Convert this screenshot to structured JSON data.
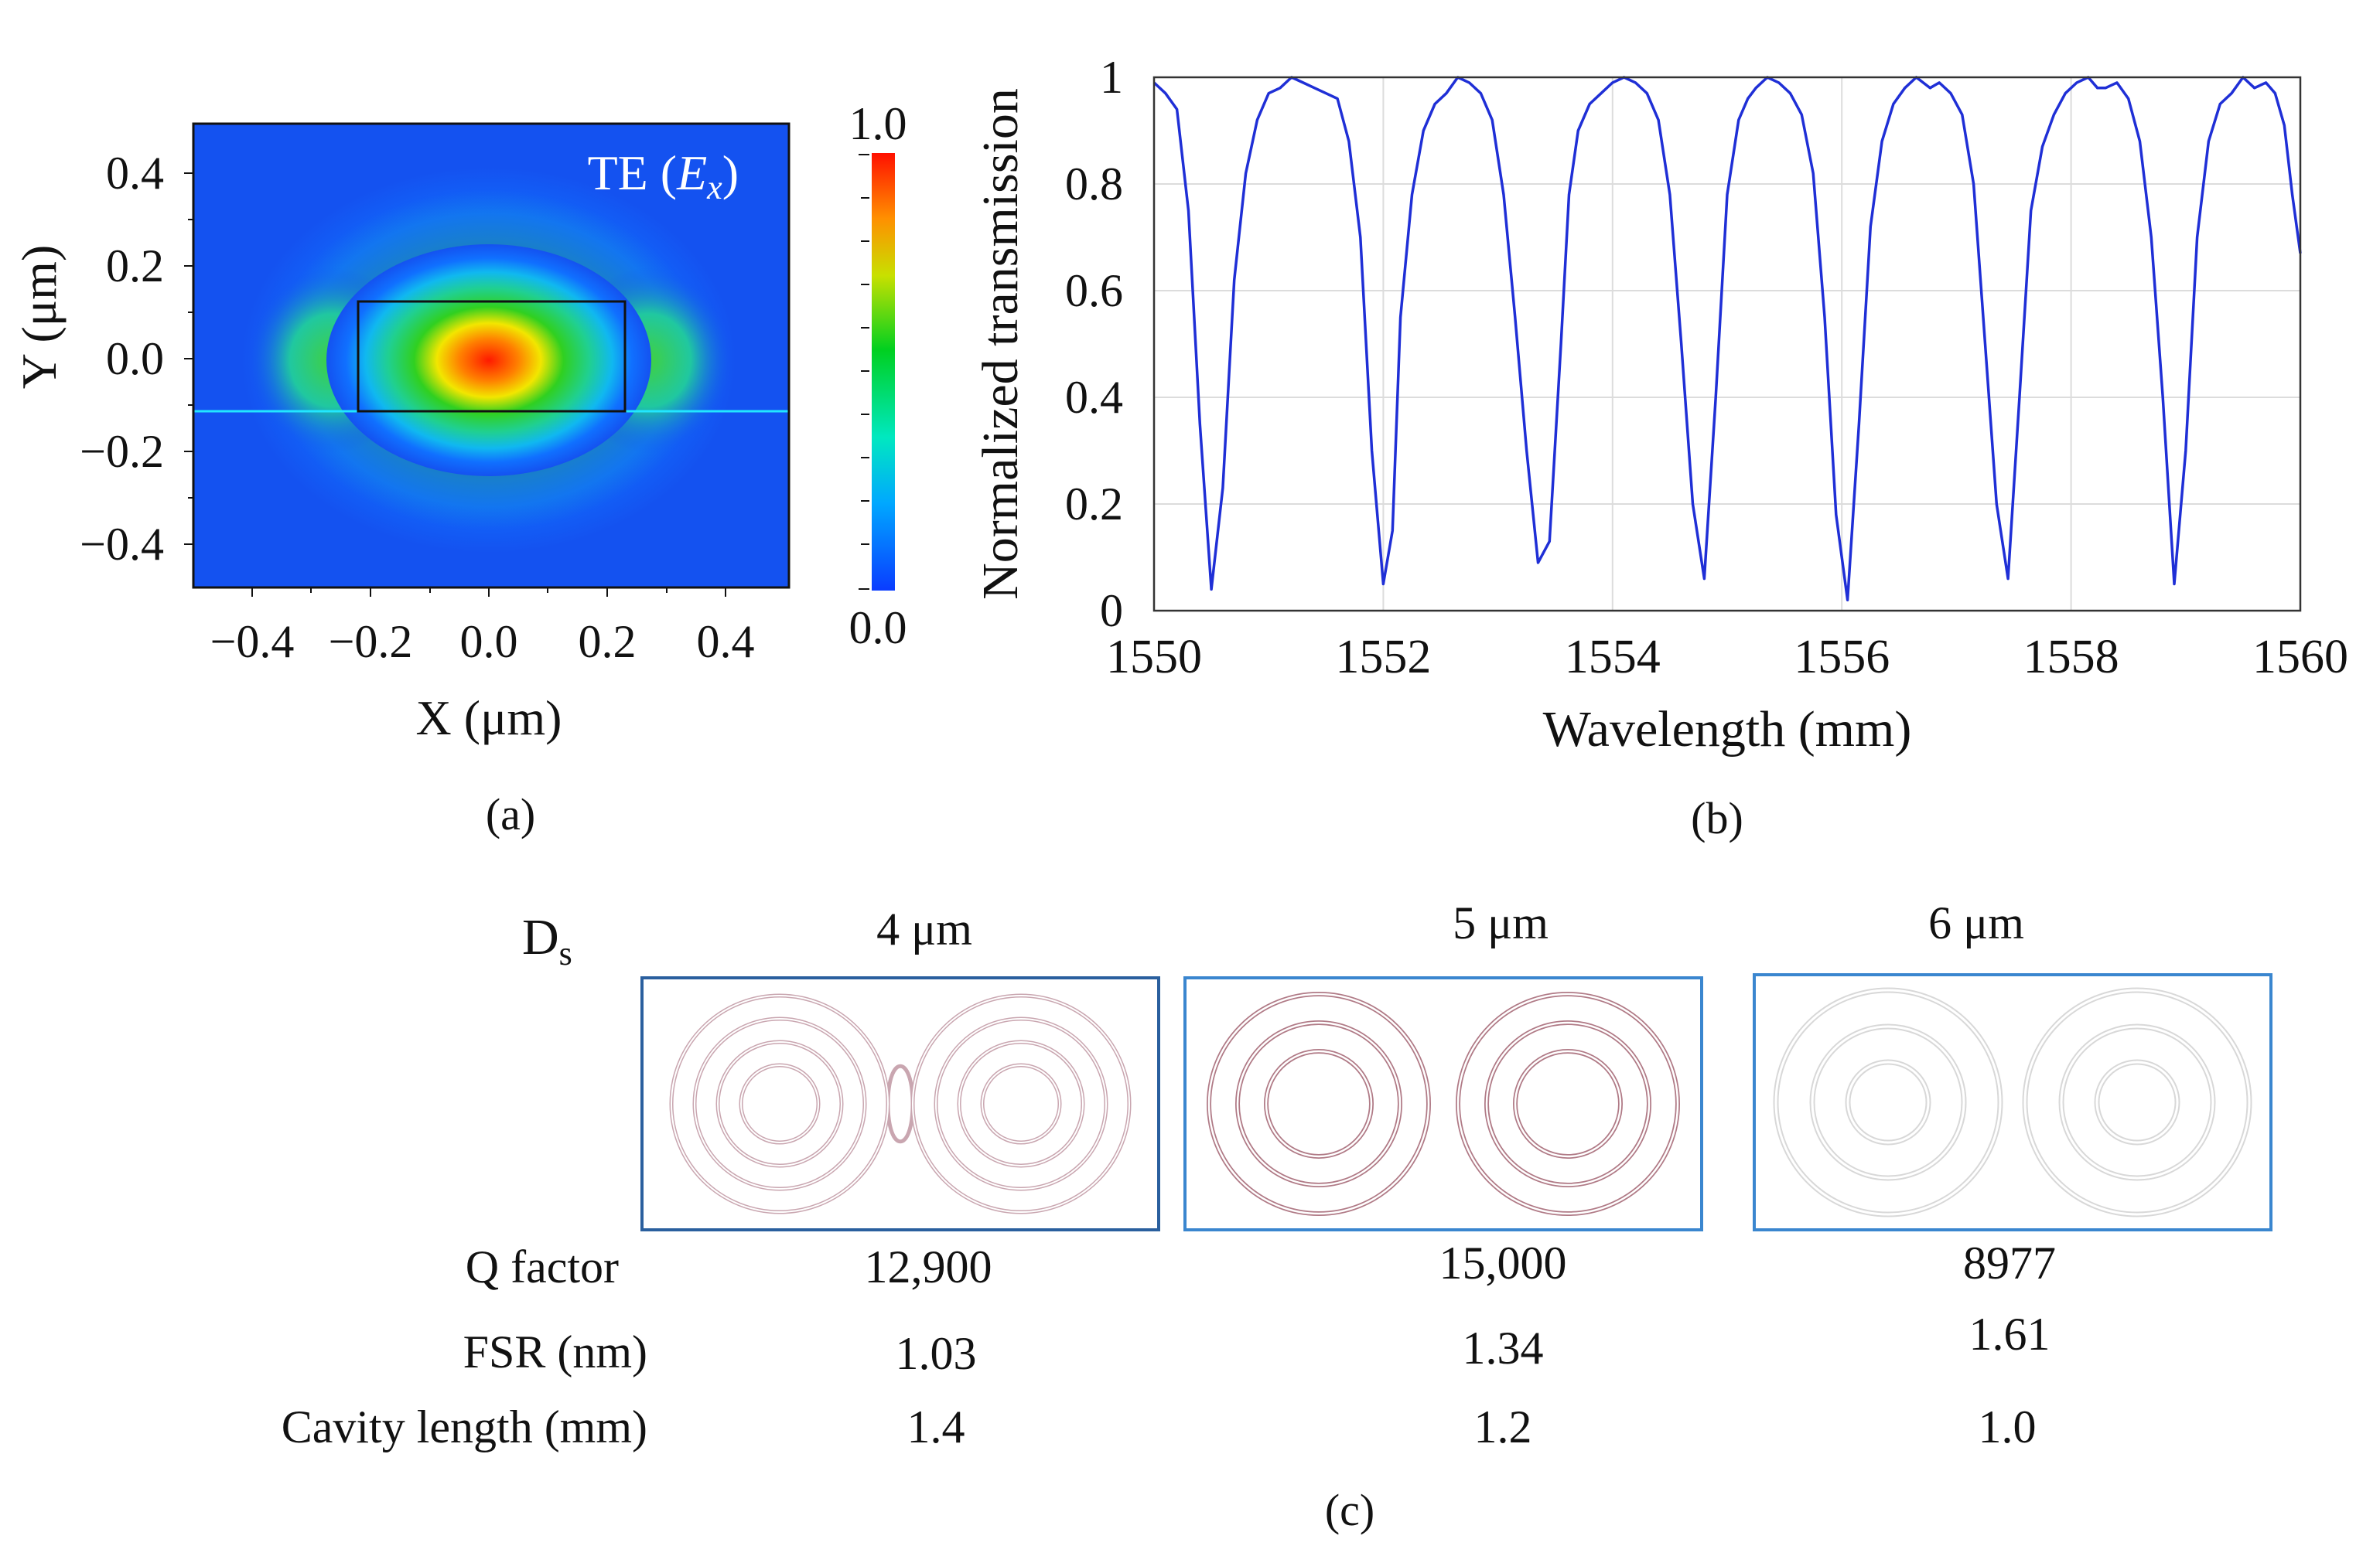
{
  "panel_a": {
    "caption": "(a)",
    "mode_label_prefix": "TE (",
    "mode_label_var": "E",
    "mode_label_sub": "x",
    "mode_label_suffix": ")",
    "xlabel": "X (μm)",
    "ylabel": "Y (μm)",
    "x_ticks": [
      "−0.4",
      "−0.2",
      "0.0",
      "0.2",
      "0.4"
    ],
    "y_ticks": [
      "0.4",
      "0.2",
      "0.0",
      "−0.2",
      "−0.4"
    ],
    "colorbar_max": "1.0",
    "colorbar_min": "0.0"
  },
  "panel_b": {
    "caption": "(b)"
  },
  "panel_c": {
    "caption": "(c)",
    "ds_label_main": "D",
    "ds_label_sub": "s",
    "columns": [
      "4 μm",
      "5 μm",
      "6 μm"
    ],
    "rows": [
      {
        "label": "Q factor",
        "values": [
          "12,900",
          "15,000",
          "8977"
        ]
      },
      {
        "label": "FSR (nm)",
        "values": [
          "1.03",
          "1.34",
          "1.61"
        ]
      },
      {
        "label": "Cavity length (mm)",
        "values": [
          "1.4",
          "1.2",
          "1.0"
        ]
      }
    ],
    "colors": {
      "frame_1": "#2a5f9e",
      "frame_2": "#3a86cf",
      "frame_3": "#3a86cf",
      "spiral_1": "#c9a6b0",
      "spiral_2": "#b07a86",
      "spiral_3": "#d8d8d8"
    }
  },
  "chart_data": {
    "type": "line",
    "title": "",
    "xlabel": "Wavelength (mm)",
    "ylabel": "Normalized transmission",
    "xlim": [
      1550,
      1560
    ],
    "ylim": [
      0,
      1
    ],
    "x_ticks": [
      "1550",
      "1552",
      "1554",
      "1556",
      "1558",
      "1560"
    ],
    "y_ticks": [
      "0",
      "0.2",
      "0.4",
      "0.6",
      "0.8",
      "1"
    ],
    "grid": true,
    "color": "#1f2fd6",
    "series": [
      {
        "name": "transmission",
        "x": [
          1550.0,
          1550.1,
          1550.2,
          1550.3,
          1550.4,
          1550.5,
          1550.6,
          1550.7,
          1550.8,
          1550.9,
          1551.0,
          1551.1,
          1551.2,
          1551.3,
          1551.4,
          1551.5,
          1551.6,
          1551.7,
          1551.8,
          1551.9,
          1552.0,
          1552.08,
          1552.15,
          1552.25,
          1552.35,
          1552.45,
          1552.55,
          1552.65,
          1552.75,
          1552.85,
          1552.95,
          1553.05,
          1553.15,
          1553.25,
          1553.35,
          1553.45,
          1553.55,
          1553.62,
          1553.7,
          1553.8,
          1553.9,
          1554.0,
          1554.1,
          1554.2,
          1554.3,
          1554.4,
          1554.5,
          1554.6,
          1554.7,
          1554.8,
          1554.9,
          1555.0,
          1555.1,
          1555.18,
          1555.25,
          1555.35,
          1555.45,
          1555.55,
          1555.65,
          1555.75,
          1555.85,
          1555.95,
          1556.05,
          1556.15,
          1556.25,
          1556.35,
          1556.45,
          1556.55,
          1556.65,
          1556.77,
          1556.85,
          1556.95,
          1557.05,
          1557.15,
          1557.25,
          1557.35,
          1557.45,
          1557.55,
          1557.65,
          1557.75,
          1557.85,
          1557.95,
          1558.05,
          1558.15,
          1558.23,
          1558.3,
          1558.4,
          1558.5,
          1558.6,
          1558.7,
          1558.8,
          1558.9,
          1559.0,
          1559.1,
          1559.2,
          1559.3,
          1559.4,
          1559.5,
          1559.6,
          1559.7,
          1559.78,
          1559.86,
          1559.93,
          1560.0
        ],
        "y": [
          0.99,
          0.97,
          0.94,
          0.75,
          0.35,
          0.04,
          0.23,
          0.62,
          0.82,
          0.92,
          0.97,
          0.98,
          1.0,
          0.99,
          0.98,
          0.97,
          0.96,
          0.88,
          0.7,
          0.3,
          0.05,
          0.15,
          0.55,
          0.78,
          0.9,
          0.95,
          0.97,
          1.0,
          0.99,
          0.97,
          0.92,
          0.78,
          0.55,
          0.3,
          0.09,
          0.13,
          0.5,
          0.78,
          0.9,
          0.95,
          0.97,
          0.99,
          1.0,
          0.99,
          0.97,
          0.92,
          0.78,
          0.5,
          0.2,
          0.06,
          0.4,
          0.78,
          0.92,
          0.96,
          0.98,
          1.0,
          0.99,
          0.97,
          0.93,
          0.82,
          0.55,
          0.18,
          0.02,
          0.35,
          0.72,
          0.88,
          0.95,
          0.98,
          1.0,
          0.98,
          0.99,
          0.97,
          0.93,
          0.8,
          0.5,
          0.2,
          0.06,
          0.4,
          0.75,
          0.87,
          0.93,
          0.97,
          0.99,
          1.0,
          0.98,
          0.98,
          0.99,
          0.96,
          0.88,
          0.7,
          0.4,
          0.05,
          0.3,
          0.7,
          0.88,
          0.95,
          0.97,
          1.0,
          0.98,
          0.99,
          0.97,
          0.91,
          0.78,
          0.67
        ]
      }
    ]
  }
}
